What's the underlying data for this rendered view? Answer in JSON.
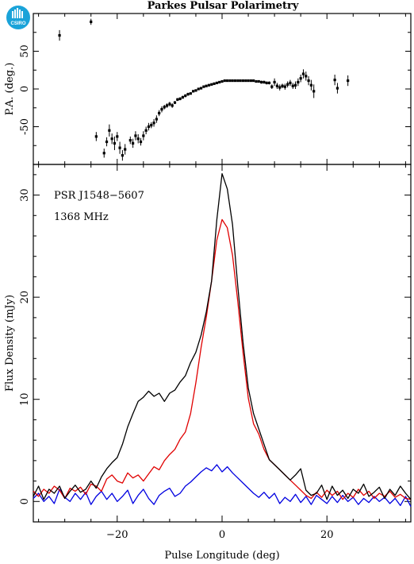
{
  "logo": {
    "text": "CSIRO",
    "color": "#1aa3d9"
  },
  "chart_data": [
    {
      "type": "scatter",
      "title": "Parkes Pulsar Polarimetry",
      "ylabel": "P.A. (deg.)",
      "xlim": [
        -36,
        36
      ],
      "ylim": [
        -100,
        100
      ],
      "yticks": [
        -50,
        0,
        50
      ],
      "error_bars": true,
      "points": [
        {
          "x": -31,
          "y": 71,
          "err": 7
        },
        {
          "x": -25,
          "y": 89,
          "err": 4
        },
        {
          "x": -24,
          "y": -63,
          "err": 6
        },
        {
          "x": -22.5,
          "y": -85,
          "err": 6
        },
        {
          "x": -22,
          "y": -70,
          "err": 6
        },
        {
          "x": -21.5,
          "y": -55,
          "err": 8
        },
        {
          "x": -21,
          "y": -66,
          "err": 7
        },
        {
          "x": -20.5,
          "y": -72,
          "err": 9
        },
        {
          "x": -20,
          "y": -63,
          "err": 6
        },
        {
          "x": -19.5,
          "y": -78,
          "err": 8
        },
        {
          "x": -19,
          "y": -88,
          "err": 7
        },
        {
          "x": -18.5,
          "y": -80,
          "err": 7
        },
        {
          "x": -17.5,
          "y": -68,
          "err": 5
        },
        {
          "x": -17,
          "y": -72,
          "err": 6
        },
        {
          "x": -16.5,
          "y": -62,
          "err": 6
        },
        {
          "x": -16,
          "y": -66,
          "err": 6
        },
        {
          "x": -15.5,
          "y": -70,
          "err": 5
        },
        {
          "x": -15,
          "y": -62,
          "err": 6
        },
        {
          "x": -14.5,
          "y": -55,
          "err": 5
        },
        {
          "x": -14,
          "y": -50,
          "err": 5
        },
        {
          "x": -13.5,
          "y": -48,
          "err": 4
        },
        {
          "x": -13,
          "y": -45,
          "err": 5
        },
        {
          "x": -12.5,
          "y": -40,
          "err": 5
        },
        {
          "x": -12,
          "y": -32,
          "err": 4
        },
        {
          "x": -11.5,
          "y": -27,
          "err": 4
        },
        {
          "x": -11,
          "y": -24,
          "err": 3
        },
        {
          "x": -10.5,
          "y": -22,
          "err": 3
        },
        {
          "x": -10,
          "y": -20,
          "err": 3
        },
        {
          "x": -9.5,
          "y": -22,
          "err": 3
        },
        {
          "x": -9,
          "y": -18,
          "err": 2
        },
        {
          "x": -8.5,
          "y": -14,
          "err": 2
        },
        {
          "x": -8,
          "y": -13,
          "err": 2
        },
        {
          "x": -7.5,
          "y": -11,
          "err": 2
        },
        {
          "x": -7,
          "y": -9,
          "err": 2
        },
        {
          "x": -6.5,
          "y": -7,
          "err": 2
        },
        {
          "x": -6,
          "y": -6,
          "err": 1
        },
        {
          "x": -5.5,
          "y": -3,
          "err": 1
        },
        {
          "x": -5,
          "y": -2,
          "err": 1
        },
        {
          "x": -4.5,
          "y": 0,
          "err": 1
        },
        {
          "x": -4,
          "y": 1,
          "err": 1
        },
        {
          "x": -3.5,
          "y": 3,
          "err": 1
        },
        {
          "x": -3,
          "y": 4,
          "err": 1
        },
        {
          "x": -2.5,
          "y": 5,
          "err": 1
        },
        {
          "x": -2,
          "y": 6,
          "err": 1
        },
        {
          "x": -1.5,
          "y": 7,
          "err": 1
        },
        {
          "x": -1,
          "y": 8,
          "err": 1
        },
        {
          "x": -0.5,
          "y": 9,
          "err": 1
        },
        {
          "x": 0,
          "y": 10,
          "err": 1
        },
        {
          "x": 0.5,
          "y": 11,
          "err": 1
        },
        {
          "x": 1,
          "y": 11,
          "err": 1
        },
        {
          "x": 1.5,
          "y": 11,
          "err": 1
        },
        {
          "x": 2,
          "y": 11,
          "err": 1
        },
        {
          "x": 2.5,
          "y": 11,
          "err": 1
        },
        {
          "x": 3,
          "y": 11,
          "err": 1
        },
        {
          "x": 3.5,
          "y": 11,
          "err": 1
        },
        {
          "x": 4,
          "y": 11,
          "err": 1
        },
        {
          "x": 4.5,
          "y": 11,
          "err": 1
        },
        {
          "x": 5,
          "y": 11,
          "err": 1
        },
        {
          "x": 5.5,
          "y": 11,
          "err": 1
        },
        {
          "x": 6,
          "y": 11,
          "err": 1
        },
        {
          "x": 6.5,
          "y": 10,
          "err": 1
        },
        {
          "x": 7,
          "y": 10,
          "err": 1
        },
        {
          "x": 7.5,
          "y": 9,
          "err": 2
        },
        {
          "x": 8,
          "y": 9,
          "err": 2
        },
        {
          "x": 8.5,
          "y": 8,
          "err": 2
        },
        {
          "x": 9,
          "y": 8,
          "err": 2
        },
        {
          "x": 9.5,
          "y": 3,
          "err": 3
        },
        {
          "x": 10,
          "y": 9,
          "err": 5
        },
        {
          "x": 10.5,
          "y": 4,
          "err": 4
        },
        {
          "x": 11,
          "y": 2,
          "err": 4
        },
        {
          "x": 11.5,
          "y": 4,
          "err": 3
        },
        {
          "x": 12,
          "y": 3,
          "err": 4
        },
        {
          "x": 12.5,
          "y": 6,
          "err": 4
        },
        {
          "x": 13,
          "y": 8,
          "err": 4
        },
        {
          "x": 13.5,
          "y": 4,
          "err": 4
        },
        {
          "x": 14,
          "y": 5,
          "err": 5
        },
        {
          "x": 14.5,
          "y": 9,
          "err": 5
        },
        {
          "x": 15,
          "y": 14,
          "err": 5
        },
        {
          "x": 15.5,
          "y": 20,
          "err": 6
        },
        {
          "x": 16,
          "y": 17,
          "err": 6
        },
        {
          "x": 16.5,
          "y": 11,
          "err": 6
        },
        {
          "x": 17,
          "y": 5,
          "err": 7
        },
        {
          "x": 17.5,
          "y": -3,
          "err": 9
        },
        {
          "x": 21.5,
          "y": 12,
          "err": 7
        },
        {
          "x": 22,
          "y": 1,
          "err": 7
        },
        {
          "x": 24,
          "y": 11,
          "err": 7
        }
      ]
    },
    {
      "type": "line",
      "xlabel": "Pulse Longitude (deg)",
      "ylabel": "Flux Density (mJy)",
      "xlim": [
        -36,
        36
      ],
      "ylim": [
        -2,
        33
      ],
      "xticks": [
        -20,
        0,
        20
      ],
      "yticks": [
        0,
        10,
        20,
        30
      ],
      "annotations": [
        "PSR J1548−5607",
        "1368 MHz"
      ],
      "x": [
        -36,
        -35,
        -34,
        -33,
        -32,
        -31,
        -30,
        -29,
        -28,
        -27,
        -26,
        -25,
        -24,
        -23,
        -22,
        -21,
        -20,
        -19,
        -18,
        -17,
        -16,
        -15,
        -14,
        -13,
        -12,
        -11,
        -10,
        -9,
        -8,
        -7,
        -6,
        -5,
        -4,
        -3,
        -2,
        -1,
        0,
        1,
        2,
        3,
        4,
        5,
        6,
        7,
        8,
        9,
        10,
        11,
        12,
        13,
        14,
        15,
        16,
        17,
        18,
        19,
        20,
        21,
        22,
        23,
        24,
        25,
        26,
        27,
        28,
        29,
        30,
        31,
        32,
        33,
        34,
        35,
        36
      ],
      "series": [
        {
          "color": "#000000",
          "values": [
            0.5,
            1.5,
            0.2,
            1.2,
            0.8,
            1.5,
            0.3,
            1.0,
            1.6,
            0.9,
            1.2,
            2.0,
            1.3,
            2.4,
            3.2,
            3.8,
            4.3,
            5.6,
            7.3,
            8.6,
            9.8,
            10.2,
            10.8,
            10.3,
            10.6,
            9.8,
            10.6,
            10.9,
            11.7,
            12.3,
            13.6,
            14.6,
            16.3,
            18.6,
            21.6,
            27.6,
            32.1,
            30.6,
            27.1,
            21.1,
            15.6,
            11.1,
            8.6,
            7.1,
            5.6,
            4.1,
            3.6,
            3.1,
            2.6,
            2.1,
            2.6,
            3.2,
            1.1,
            0.6,
            0.8,
            1.6,
            0.2,
            1.5,
            0.6,
            1.1,
            0.3,
            1.2,
            0.8,
            1.7,
            0.5,
            0.9,
            1.4,
            0.3,
            1.2,
            0.6,
            1.5,
            0.8,
            0.2
          ]
        },
        {
          "color": "#e00000",
          "values": [
            1.0,
            0.5,
            1.2,
            0.8,
            1.5,
            1.1,
            0.3,
            1.3,
            1.0,
            1.4,
            0.7,
            1.7,
            1.5,
            1.0,
            2.2,
            2.6,
            2.0,
            1.8,
            2.8,
            2.3,
            2.6,
            2.0,
            2.7,
            3.4,
            3.1,
            4.0,
            4.6,
            5.1,
            6.1,
            6.8,
            8.6,
            11.6,
            15.1,
            18.1,
            21.6,
            25.6,
            27.6,
            26.8,
            24.1,
            19.6,
            14.6,
            10.1,
            7.6,
            6.6,
            5.1,
            4.1,
            3.6,
            3.1,
            2.6,
            2.1,
            1.6,
            1.1,
            0.6,
            0.3,
            0.9,
            0.4,
            1.1,
            0.6,
            1.0,
            0.2,
            0.8,
            0.4,
            1.2,
            0.6,
            1.0,
            0.3,
            0.8,
            0.5,
            1.0,
            0.4,
            0.7,
            0.3,
            0.2
          ]
        },
        {
          "color": "#0000e0",
          "values": [
            0.3,
            0.8,
            0.0,
            0.5,
            -0.2,
            1.2,
            0.4,
            0.0,
            0.8,
            0.2,
            0.9,
            -0.3,
            0.5,
            1.0,
            0.2,
            0.8,
            0.0,
            0.5,
            1.1,
            -0.2,
            0.6,
            1.2,
            0.3,
            -0.3,
            0.6,
            1.0,
            1.3,
            0.5,
            0.8,
            1.5,
            1.9,
            2.4,
            2.9,
            3.3,
            3.0,
            3.6,
            2.9,
            3.4,
            2.8,
            2.3,
            1.8,
            1.3,
            0.8,
            0.4,
            0.9,
            0.3,
            0.8,
            -0.2,
            0.4,
            0.0,
            0.7,
            -0.1,
            0.5,
            -0.3,
            0.6,
            0.2,
            -0.2,
            0.5,
            -0.1,
            0.6,
            0.0,
            0.4,
            -0.3,
            0.3,
            -0.1,
            0.5,
            0.0,
            0.4,
            -0.2,
            0.3,
            -0.4,
            0.5,
            -0.5
          ]
        }
      ]
    }
  ]
}
